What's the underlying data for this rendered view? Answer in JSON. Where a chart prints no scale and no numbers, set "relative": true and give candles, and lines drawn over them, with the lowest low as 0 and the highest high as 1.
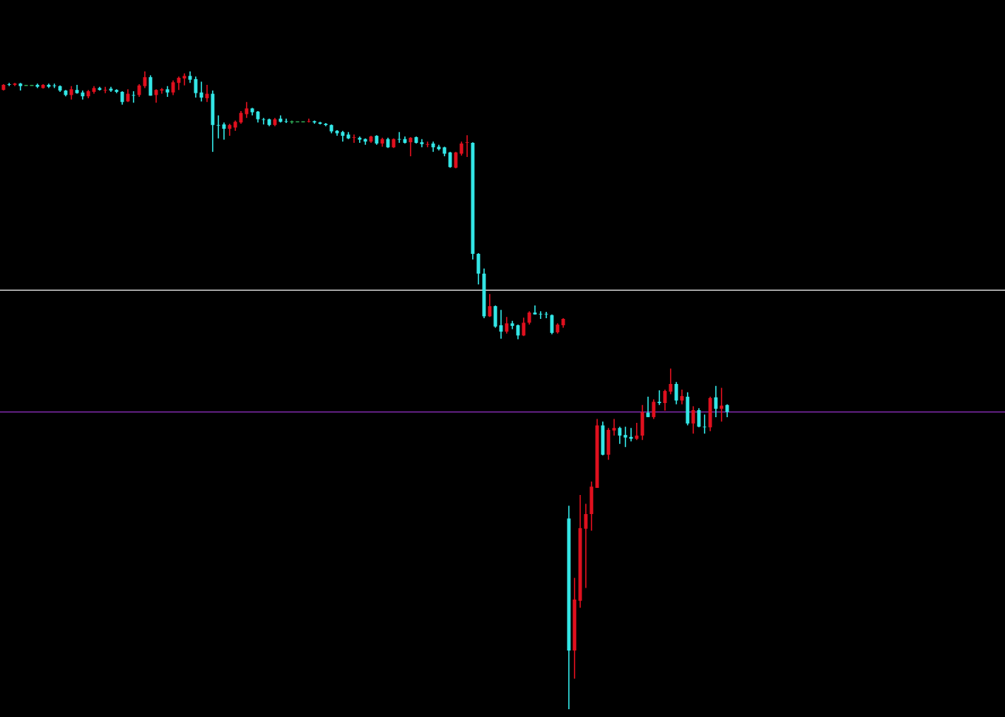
{
  "chart_data": {
    "type": "candlestick",
    "relative": true,
    "categories": [
      null,
      null,
      null,
      null,
      null,
      null,
      null,
      null,
      null,
      null,
      null,
      null,
      null,
      null,
      null,
      null,
      null,
      null,
      null,
      null,
      null,
      null,
      null,
      null,
      null,
      null,
      null,
      null,
      null,
      null,
      null,
      null,
      null,
      null,
      null,
      null,
      null,
      null,
      null,
      null,
      null,
      null,
      null,
      null,
      null,
      null,
      null,
      null,
      null,
      null,
      null,
      null,
      null,
      null,
      null,
      null,
      null,
      null,
      null,
      null,
      null,
      null,
      null,
      null,
      null,
      null,
      null,
      null,
      null,
      null,
      null,
      null,
      null,
      null,
      null,
      null,
      null,
      null,
      null,
      null,
      null,
      null,
      null,
      null,
      null,
      null,
      null,
      null,
      null,
      null,
      null,
      null,
      null,
      null,
      null,
      null,
      null,
      null,
      null,
      null,
      null,
      null,
      null,
      null,
      null,
      null,
      null,
      null,
      null,
      null,
      null,
      null,
      null,
      null,
      null,
      null,
      null,
      null,
      null,
      null,
      null,
      null,
      null,
      null,
      null,
      null,
      null,
      null,
      null
    ],
    "ohlc": [
      [
        0.971,
        0.98,
        0.97,
        0.979
      ],
      [
        0.98,
        0.982,
        0.977,
        0.979
      ],
      [
        0.979,
        0.982,
        0.977,
        0.981
      ],
      [
        0.981,
        0.982,
        0.97,
        0.977
      ],
      [
        0.978,
        0.978,
        0.978,
        0.978
      ],
      [
        0.978,
        0.978,
        0.978,
        0.978
      ],
      [
        0.979,
        0.981,
        0.974,
        0.976
      ],
      [
        0.974,
        0.98,
        0.973,
        0.979
      ],
      [
        0.979,
        0.981,
        0.974,
        0.976
      ],
      [
        0.978,
        0.981,
        0.974,
        0.977
      ],
      [
        0.977,
        0.978,
        0.968,
        0.97
      ],
      [
        0.97,
        0.971,
        0.961,
        0.963
      ],
      [
        0.963,
        0.977,
        0.956,
        0.972
      ],
      [
        0.971,
        0.979,
        0.965,
        0.966
      ],
      [
        0.967,
        0.97,
        0.956,
        0.961
      ],
      [
        0.961,
        0.971,
        0.958,
        0.969
      ],
      [
        0.968,
        0.977,
        0.965,
        0.974
      ],
      [
        0.974,
        0.976,
        0.97,
        0.971
      ],
      [
        0.97,
        0.976,
        0.966,
        0.971
      ],
      [
        0.973,
        0.976,
        0.968,
        0.97
      ],
      [
        0.971,
        0.972,
        0.966,
        0.968
      ],
      [
        0.968,
        0.969,
        0.948,
        0.952
      ],
      [
        0.953,
        0.972,
        0.952,
        0.965
      ],
      [
        0.963,
        0.969,
        0.951,
        0.962
      ],
      [
        0.963,
        0.98,
        0.96,
        0.978
      ],
      [
        0.977,
        1.0,
        0.974,
        0.991
      ],
      [
        0.991,
        0.994,
        0.962,
        0.962
      ],
      [
        0.963,
        0.972,
        0.951,
        0.971
      ],
      [
        0.97,
        0.974,
        0.965,
        0.972
      ],
      [
        0.972,
        0.977,
        0.96,
        0.967
      ],
      [
        0.967,
        0.986,
        0.963,
        0.983
      ],
      [
        0.982,
        0.992,
        0.971,
        0.99
      ],
      [
        0.989,
        0.997,
        0.978,
        0.993
      ],
      [
        0.993,
        1.0,
        0.982,
        0.987
      ],
      [
        0.988,
        0.992,
        0.959,
        0.966
      ],
      [
        0.967,
        0.984,
        0.953,
        0.959
      ],
      [
        0.958,
        0.979,
        0.952,
        0.965
      ],
      [
        0.965,
        0.97,
        0.874,
        0.916
      ],
      [
        0.916,
        0.931,
        0.895,
        0.915
      ],
      [
        0.917,
        0.92,
        0.893,
        0.91
      ],
      [
        0.91,
        0.918,
        0.899,
        0.916
      ],
      [
        0.912,
        0.923,
        0.907,
        0.921
      ],
      [
        0.92,
        0.938,
        0.918,
        0.935
      ],
      [
        0.933,
        0.952,
        0.927,
        0.942
      ],
      [
        0.942,
        0.943,
        0.931,
        0.936
      ],
      [
        0.937,
        0.938,
        0.92,
        0.925
      ],
      [
        0.925,
        0.927,
        0.917,
        0.924
      ],
      [
        0.925,
        0.926,
        0.914,
        0.916
      ],
      [
        0.916,
        0.927,
        0.914,
        0.925
      ],
      [
        0.926,
        0.931,
        0.92,
        0.921
      ],
      [
        0.922,
        0.926,
        0.919,
        0.921
      ],
      [
        0.921,
        0.923,
        0.918,
        0.921
      ],
      [
        0.921,
        0.921,
        0.921,
        0.921
      ],
      [
        0.921,
        0.921,
        0.921,
        0.921
      ],
      [
        0.921,
        0.926,
        0.92,
        0.922
      ],
      [
        0.922,
        0.923,
        0.918,
        0.92
      ],
      [
        0.92,
        0.921,
        0.917,
        0.918
      ],
      [
        0.918,
        0.919,
        0.914,
        0.916
      ],
      [
        0.916,
        0.917,
        0.903,
        0.906
      ],
      [
        0.907,
        0.908,
        0.899,
        0.903
      ],
      [
        0.905,
        0.907,
        0.89,
        0.899
      ],
      [
        0.901,
        0.905,
        0.894,
        0.895
      ],
      [
        0.896,
        0.901,
        0.888,
        0.897
      ],
      [
        0.896,
        0.898,
        0.888,
        0.893
      ],
      [
        0.894,
        0.895,
        0.885,
        0.89
      ],
      [
        0.89,
        0.899,
        0.888,
        0.898
      ],
      [
        0.899,
        0.9,
        0.885,
        0.887
      ],
      [
        0.887,
        0.896,
        0.882,
        0.894
      ],
      [
        0.894,
        0.896,
        0.88,
        0.881
      ],
      [
        0.881,
        0.895,
        0.88,
        0.894
      ],
      [
        0.894,
        0.905,
        0.888,
        0.893
      ],
      [
        0.894,
        0.898,
        0.887,
        0.888
      ],
      [
        0.889,
        0.897,
        0.867,
        0.896
      ],
      [
        0.897,
        0.898,
        0.887,
        0.888
      ],
      [
        0.889,
        0.894,
        0.881,
        0.886
      ],
      [
        0.885,
        0.89,
        0.881,
        0.886
      ],
      [
        0.887,
        0.89,
        0.874,
        0.881
      ],
      [
        0.882,
        0.885,
        0.876,
        0.878
      ],
      [
        0.881,
        0.882,
        0.867,
        0.871
      ],
      [
        0.873,
        0.874,
        0.849,
        0.85
      ],
      [
        0.849,
        0.874,
        0.848,
        0.873
      ],
      [
        0.871,
        0.89,
        0.868,
        0.887
      ],
      [
        0.888,
        0.9,
        0.866,
        0.889
      ],
      [
        0.888,
        0.889,
        0.705,
        0.714
      ],
      [
        0.714,
        0.715,
        0.666,
        0.683
      ],
      [
        0.683,
        0.691,
        0.613,
        0.616
      ],
      [
        0.616,
        0.651,
        0.615,
        0.632
      ],
      [
        0.632,
        0.633,
        0.598,
        0.6
      ],
      [
        0.602,
        0.626,
        0.581,
        0.592
      ],
      [
        0.592,
        0.615,
        0.589,
        0.605
      ],
      [
        0.605,
        0.609,
        0.596,
        0.601
      ],
      [
        0.602,
        0.603,
        0.58,
        0.586
      ],
      [
        0.586,
        0.614,
        0.585,
        0.606
      ],
      [
        0.606,
        0.624,
        0.603,
        0.622
      ],
      [
        0.622,
        0.633,
        0.619,
        0.619
      ],
      [
        0.62,
        0.624,
        0.612,
        0.619
      ],
      [
        0.62,
        0.623,
        0.613,
        0.619
      ],
      [
        0.618,
        0.619,
        0.588,
        0.59
      ],
      [
        0.591,
        0.605,
        0.589,
        0.603
      ],
      [
        0.602,
        0.613,
        0.598,
        0.612
      ],
      [
        0.299,
        0.319,
        0.0,
        0.092
      ],
      [
        0.092,
        0.206,
        0.048,
        0.172
      ],
      [
        0.17,
        0.336,
        0.159,
        0.284
      ],
      [
        0.283,
        0.322,
        0.19,
        0.306
      ],
      [
        0.306,
        0.357,
        0.28,
        0.349
      ],
      [
        0.347,
        0.455,
        0.347,
        0.445
      ],
      [
        0.445,
        0.451,
        0.398,
        0.399
      ],
      [
        0.399,
        0.441,
        0.391,
        0.438
      ],
      [
        0.437,
        0.455,
        0.429,
        0.441
      ],
      [
        0.441,
        0.443,
        0.416,
        0.429
      ],
      [
        0.43,
        0.443,
        0.411,
        0.426
      ],
      [
        0.427,
        0.441,
        0.42,
        0.424
      ],
      [
        0.424,
        0.449,
        0.422,
        0.429
      ],
      [
        0.429,
        0.477,
        0.422,
        0.466
      ],
      [
        0.465,
        0.49,
        0.458,
        0.458
      ],
      [
        0.458,
        0.486,
        0.455,
        0.482
      ],
      [
        0.482,
        0.5,
        0.477,
        0.48
      ],
      [
        0.48,
        0.501,
        0.468,
        0.499
      ],
      [
        0.498,
        0.534,
        0.494,
        0.51
      ],
      [
        0.51,
        0.513,
        0.478,
        0.484
      ],
      [
        0.484,
        0.501,
        0.478,
        0.491
      ],
      [
        0.49,
        0.497,
        0.445,
        0.448
      ],
      [
        0.448,
        0.475,
        0.432,
        0.469
      ],
      [
        0.469,
        0.472,
        0.442,
        0.443
      ],
      [
        0.443,
        0.462,
        0.432,
        0.442
      ],
      [
        0.442,
        0.49,
        0.436,
        0.488
      ],
      [
        0.489,
        0.507,
        0.458,
        0.471
      ],
      [
        0.471,
        0.504,
        0.451,
        0.476
      ],
      [
        0.477,
        0.478,
        0.458,
        0.466
      ]
    ],
    "colors": [
      "#e0101e",
      "#33e6e6",
      "#e0101e",
      "#33e6e6",
      "#2ca050",
      "#2ca050",
      "#33e6e6",
      "#e0101e",
      "#33e6e6",
      "#33e6e6",
      "#33e6e6",
      "#33e6e6",
      "#e0101e",
      "#33e6e6",
      "#33e6e6",
      "#e0101e",
      "#e0101e",
      "#33e6e6",
      "#e0101e",
      "#33e6e6",
      "#33e6e6",
      "#33e6e6",
      "#e0101e",
      "#33e6e6",
      "#e0101e",
      "#e0101e",
      "#33e6e6",
      "#e0101e",
      "#e0101e",
      "#33e6e6",
      "#e0101e",
      "#e0101e",
      "#e0101e",
      "#33e6e6",
      "#33e6e6",
      "#33e6e6",
      "#e0101e",
      "#33e6e6",
      "#33e6e6",
      "#33e6e6",
      "#e0101e",
      "#e0101e",
      "#e0101e",
      "#e0101e",
      "#33e6e6",
      "#33e6e6",
      "#33e6e6",
      "#33e6e6",
      "#e0101e",
      "#33e6e6",
      "#33e6e6",
      "#2ca050",
      "#2ca050",
      "#2ca050",
      "#e0101e",
      "#33e6e6",
      "#33e6e6",
      "#33e6e6",
      "#33e6e6",
      "#33e6e6",
      "#33e6e6",
      "#33e6e6",
      "#e0101e",
      "#33e6e6",
      "#33e6e6",
      "#e0101e",
      "#33e6e6",
      "#e0101e",
      "#33e6e6",
      "#e0101e",
      "#33e6e6",
      "#33e6e6",
      "#e0101e",
      "#33e6e6",
      "#33e6e6",
      "#e0101e",
      "#33e6e6",
      "#33e6e6",
      "#33e6e6",
      "#33e6e6",
      "#e0101e",
      "#e0101e",
      "#e0101e",
      "#33e6e6",
      "#33e6e6",
      "#33e6e6",
      "#e0101e",
      "#33e6e6",
      "#33e6e6",
      "#e0101e",
      "#33e6e6",
      "#33e6e6",
      "#e0101e",
      "#e0101e",
      "#33e6e6",
      "#33e6e6",
      "#33e6e6",
      "#33e6e6",
      "#e0101e",
      "#e0101e",
      "#33e6e6",
      "#e0101e",
      "#e0101e",
      "#e0101e",
      "#e0101e",
      "#e0101e",
      "#33e6e6",
      "#e0101e",
      "#e0101e",
      "#33e6e6",
      "#33e6e6",
      "#33e6e6",
      "#e0101e",
      "#e0101e",
      "#33e6e6",
      "#e0101e",
      "#33e6e6",
      "#e0101e",
      "#e0101e",
      "#33e6e6",
      "#e0101e",
      "#33e6e6",
      "#e0101e",
      "#33e6e6",
      "#33e6e6",
      "#e0101e",
      "#33e6e6",
      "#e0101e",
      "#33e6e6"
    ],
    "ref_lines": [
      {
        "axis": "y",
        "value": 0.657,
        "color": "#ffffff"
      },
      {
        "axis": "y",
        "value": 0.466,
        "color": "#9933cc"
      }
    ]
  }
}
